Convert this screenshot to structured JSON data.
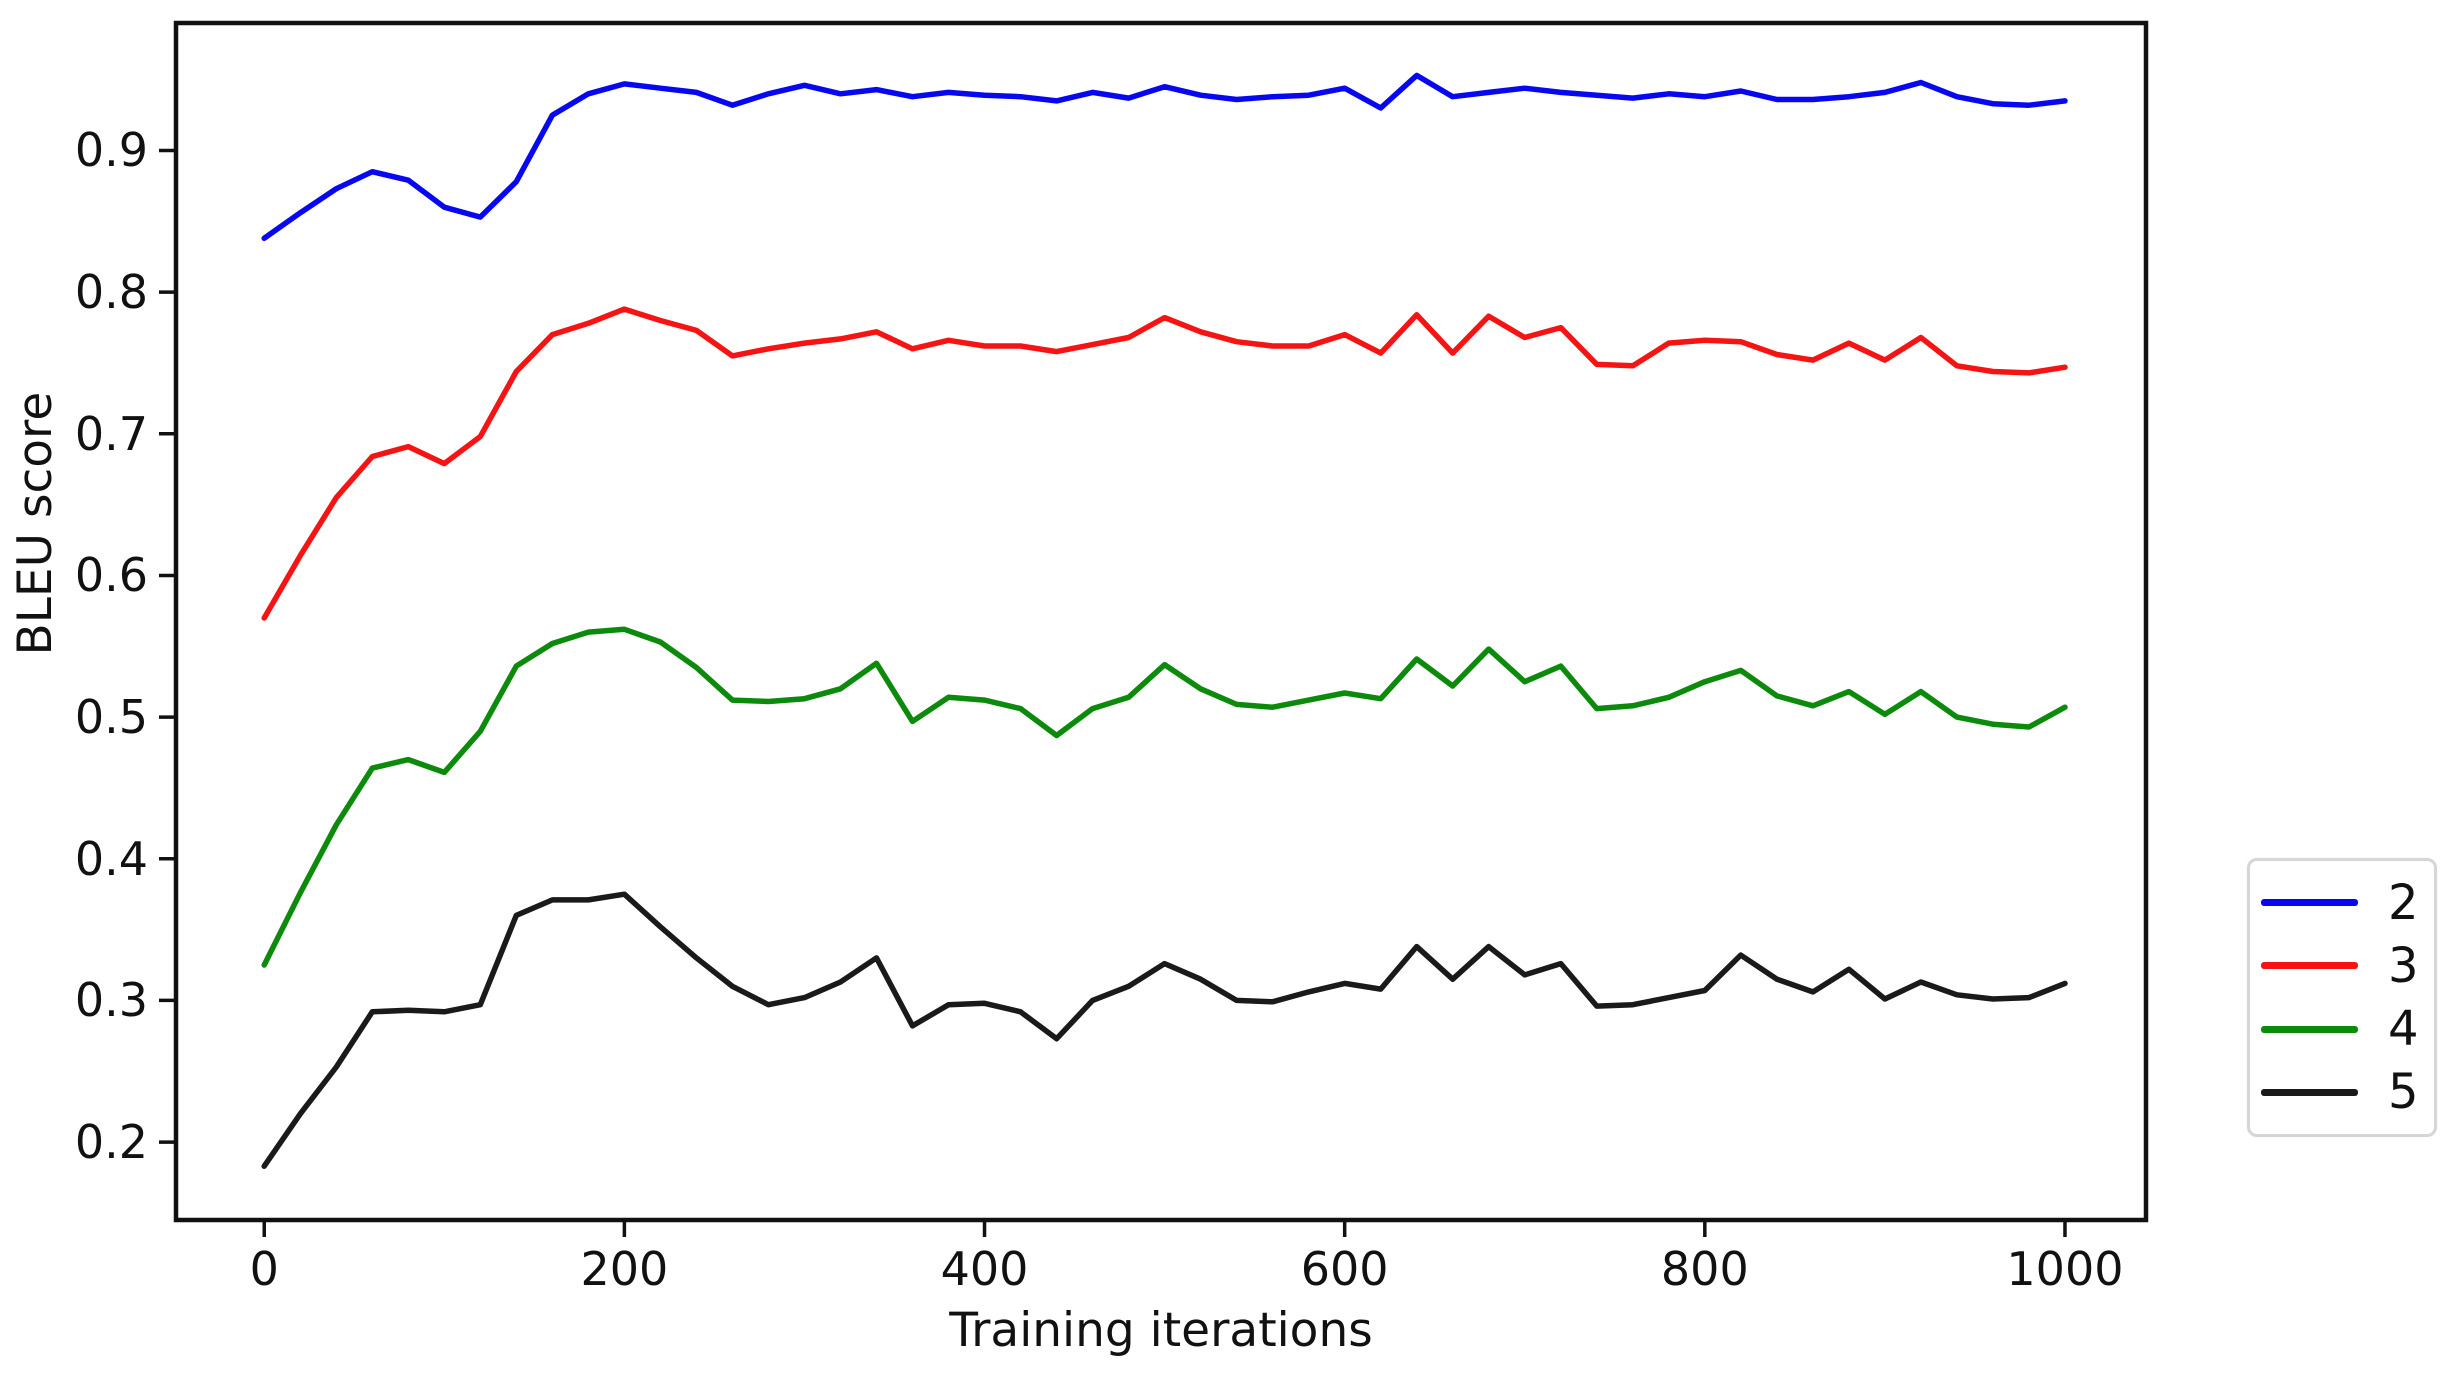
{
  "chart_data": {
    "type": "line",
    "title": "",
    "xlabel": "Training iterations",
    "ylabel": "BLEU score",
    "xlim": [
      -49,
      1045
    ],
    "ylim": [
      0.145,
      0.99
    ],
    "x_ticks": [
      0,
      200,
      400,
      600,
      800,
      1000
    ],
    "y_ticks": [
      0.2,
      0.3,
      0.4,
      0.5,
      0.6,
      0.7,
      0.8,
      0.9
    ],
    "grid": false,
    "legend_position": "outside-right",
    "axis_color": "#111111",
    "x": [
      0,
      20,
      40,
      60,
      80,
      100,
      120,
      140,
      160,
      180,
      200,
      220,
      240,
      260,
      280,
      300,
      320,
      340,
      360,
      380,
      400,
      420,
      440,
      460,
      480,
      500,
      520,
      540,
      560,
      580,
      600,
      620,
      640,
      660,
      680,
      700,
      720,
      740,
      760,
      780,
      800,
      820,
      840,
      860,
      880,
      900,
      920,
      940,
      960,
      980,
      1000
    ],
    "series": [
      {
        "name": "2",
        "color": "#0808f0",
        "values": [
          0.838,
          0.856,
          0.873,
          0.885,
          0.879,
          0.86,
          0.853,
          0.878,
          0.925,
          0.94,
          0.947,
          0.944,
          0.941,
          0.932,
          0.94,
          0.946,
          0.94,
          0.943,
          0.938,
          0.941,
          0.939,
          0.938,
          0.935,
          0.941,
          0.937,
          0.945,
          0.939,
          0.936,
          0.938,
          0.939,
          0.944,
          0.93,
          0.953,
          0.938,
          0.941,
          0.944,
          0.941,
          0.939,
          0.937,
          0.94,
          0.938,
          0.942,
          0.936,
          0.936,
          0.938,
          0.941,
          0.948,
          0.938,
          0.933,
          0.932,
          0.935
        ]
      },
      {
        "name": "3",
        "color": "#f51414",
        "values": [
          0.57,
          0.614,
          0.655,
          0.684,
          0.691,
          0.679,
          0.698,
          0.744,
          0.77,
          0.778,
          0.788,
          0.78,
          0.773,
          0.755,
          0.76,
          0.764,
          0.767,
          0.772,
          0.76,
          0.766,
          0.762,
          0.762,
          0.758,
          0.763,
          0.768,
          0.782,
          0.772,
          0.765,
          0.762,
          0.762,
          0.77,
          0.757,
          0.784,
          0.757,
          0.783,
          0.768,
          0.775,
          0.749,
          0.748,
          0.764,
          0.766,
          0.765,
          0.756,
          0.752,
          0.764,
          0.752,
          0.768,
          0.748,
          0.744,
          0.743,
          0.747
        ]
      },
      {
        "name": "4",
        "color": "#0c8a0c",
        "values": [
          0.325,
          0.376,
          0.424,
          0.464,
          0.47,
          0.461,
          0.49,
          0.536,
          0.552,
          0.56,
          0.562,
          0.553,
          0.535,
          0.512,
          0.511,
          0.513,
          0.52,
          0.538,
          0.497,
          0.514,
          0.512,
          0.506,
          0.487,
          0.506,
          0.514,
          0.537,
          0.52,
          0.509,
          0.507,
          0.512,
          0.517,
          0.513,
          0.541,
          0.522,
          0.548,
          0.525,
          0.536,
          0.506,
          0.508,
          0.514,
          0.525,
          0.533,
          0.515,
          0.508,
          0.518,
          0.502,
          0.518,
          0.5,
          0.495,
          0.493,
          0.507
        ]
      },
      {
        "name": "5",
        "color": "#1a1a1a",
        "values": [
          0.183,
          0.22,
          0.253,
          0.292,
          0.293,
          0.292,
          0.297,
          0.36,
          0.371,
          0.371,
          0.375,
          0.352,
          0.33,
          0.31,
          0.297,
          0.302,
          0.313,
          0.33,
          0.282,
          0.297,
          0.298,
          0.292,
          0.273,
          0.3,
          0.31,
          0.326,
          0.315,
          0.3,
          0.299,
          0.306,
          0.312,
          0.308,
          0.338,
          0.315,
          0.338,
          0.318,
          0.326,
          0.296,
          0.297,
          0.302,
          0.307,
          0.332,
          0.315,
          0.306,
          0.322,
          0.301,
          0.313,
          0.304,
          0.301,
          0.302,
          0.312
        ]
      }
    ]
  }
}
